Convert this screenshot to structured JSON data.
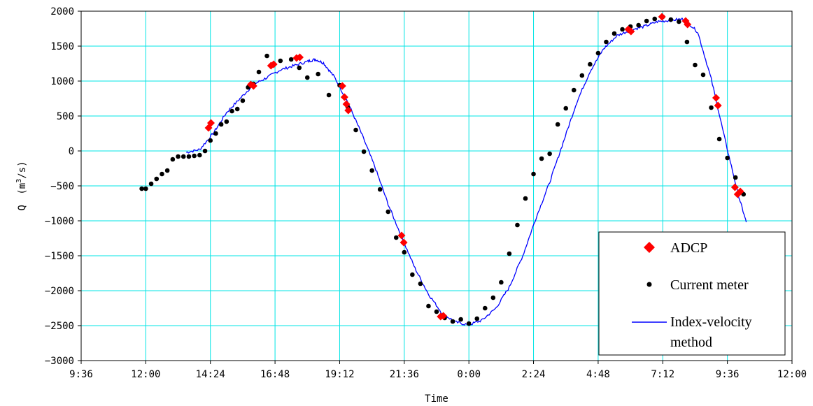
{
  "chart_data": {
    "type": "line",
    "title": "",
    "xlabel": "Time",
    "ylabel": "Q",
    "ylabel_unit": "m3/s",
    "ylim": [
      -3000,
      2000
    ],
    "y_ticks": [
      2000,
      1500,
      1000,
      500,
      0,
      -500,
      -1000,
      -1500,
      -2000,
      -2500,
      -3000
    ],
    "y_tick_labels": [
      "2000",
      "1500",
      "1000",
      "500",
      "0",
      "−500",
      "−1000",
      "−1500",
      "−2000",
      "−2500",
      "−3000"
    ],
    "x_tick_labels": [
      "9:36",
      "12:00",
      "14:24",
      "16:48",
      "19:12",
      "21:36",
      "0:00",
      "2:24",
      "4:48",
      "7:12",
      "9:36",
      "12:00"
    ],
    "x_range_hours": [
      9.6,
      36.0
    ],
    "grid": true,
    "grid_color": "#00e5e5",
    "legend_position": "bottom-right",
    "series": [
      {
        "name": "ADCP",
        "marker": "diamond",
        "color": "#ff0000",
        "x_hours": [
          14.33,
          14.42,
          15.9,
          16.0,
          16.65,
          16.75,
          17.6,
          17.72,
          19.3,
          19.38,
          19.45,
          19.52,
          21.5,
          21.58,
          22.95,
          23.05,
          29.92,
          30.02,
          31.17,
          32.05,
          32.12,
          33.18,
          33.25,
          33.88,
          33.98,
          34.08
        ],
        "values": [
          330,
          400,
          950,
          930,
          1220,
          1240,
          1330,
          1340,
          930,
          770,
          670,
          580,
          -1210,
          -1310,
          -2370,
          -2360,
          1740,
          1710,
          1920,
          1860,
          1810,
          760,
          650,
          -520,
          -620,
          -580
        ]
      },
      {
        "name": "Current meter",
        "marker": "dot",
        "color": "#000000",
        "x_hours": [
          11.85,
          12.0,
          12.2,
          12.4,
          12.6,
          12.8,
          13.0,
          13.2,
          13.4,
          13.6,
          13.8,
          14.0,
          14.2,
          14.4,
          14.6,
          14.8,
          15.0,
          15.2,
          15.4,
          15.6,
          15.8,
          16.0,
          16.2,
          16.5,
          17.0,
          17.4,
          17.7,
          18.0,
          18.4,
          18.8,
          19.2,
          19.5,
          19.8,
          20.1,
          20.4,
          20.7,
          21.0,
          21.3,
          21.6,
          21.9,
          22.2,
          22.5,
          22.8,
          23.1,
          23.4,
          23.7,
          24.0,
          24.3,
          24.6,
          24.9,
          25.2,
          25.5,
          25.8,
          26.1,
          26.4,
          26.7,
          27.0,
          27.3,
          27.6,
          27.9,
          28.2,
          28.5,
          28.8,
          29.1,
          29.4,
          29.7,
          30.0,
          30.3,
          30.6,
          30.9,
          31.2,
          31.5,
          31.8,
          32.1,
          32.4,
          32.7,
          33.0,
          33.3,
          33.6,
          33.9,
          34.2
        ],
        "values": [
          -540,
          -540,
          -470,
          -400,
          -330,
          -280,
          -120,
          -80,
          -80,
          -80,
          -70,
          -60,
          0,
          150,
          250,
          380,
          420,
          570,
          600,
          720,
          910,
          960,
          1130,
          1360,
          1290,
          1310,
          1190,
          1050,
          1100,
          800,
          940,
          630,
          300,
          -10,
          -280,
          -550,
          -870,
          -1240,
          -1450,
          -1770,
          -1900,
          -2220,
          -2300,
          -2390,
          -2440,
          -2410,
          -2470,
          -2400,
          -2250,
          -2100,
          -1880,
          -1470,
          -1060,
          -680,
          -330,
          -110,
          -40,
          380,
          610,
          870,
          1080,
          1240,
          1400,
          1560,
          1680,
          1740,
          1780,
          1800,
          1860,
          1890,
          1920,
          1880,
          1850,
          1560,
          1230,
          1090,
          620,
          170,
          -100,
          -380,
          -620
        ]
      },
      {
        "name": "Index-velocity\nmethod",
        "marker": "line",
        "color": "#0000ff",
        "x_hours": [
          13.5,
          14.0,
          14.5,
          15.0,
          15.5,
          16.0,
          16.5,
          17.0,
          17.5,
          18.0,
          18.3,
          18.6,
          19.0,
          19.5,
          20.0,
          20.5,
          21.0,
          21.5,
          22.0,
          22.5,
          23.0,
          23.5,
          24.0,
          24.5,
          25.0,
          25.5,
          26.0,
          26.5,
          27.0,
          27.5,
          28.0,
          28.5,
          29.0,
          29.5,
          30.0,
          30.5,
          31.0,
          31.5,
          32.0,
          32.5,
          33.0,
          33.5,
          34.0,
          34.3
        ],
        "values": [
          -20,
          20,
          250,
          550,
          750,
          950,
          1050,
          1160,
          1220,
          1280,
          1310,
          1260,
          1060,
          700,
          260,
          -220,
          -760,
          -1230,
          -1680,
          -2050,
          -2320,
          -2450,
          -2490,
          -2420,
          -2250,
          -1950,
          -1500,
          -950,
          -450,
          120,
          690,
          1140,
          1460,
          1650,
          1730,
          1780,
          1850,
          1870,
          1890,
          1700,
          1030,
          180,
          -620,
          -1020
        ]
      }
    ]
  },
  "legend": {
    "adcp": "ADCP",
    "current_meter": "Current meter",
    "index_line1": "Index-velocity",
    "index_line2": "method"
  },
  "axis": {
    "ylabel_q": "Q",
    "ylabel_unit_base": "m",
    "ylabel_unit_sup": "3",
    "ylabel_unit_tail": "/s",
    "xlabel": "Time"
  }
}
